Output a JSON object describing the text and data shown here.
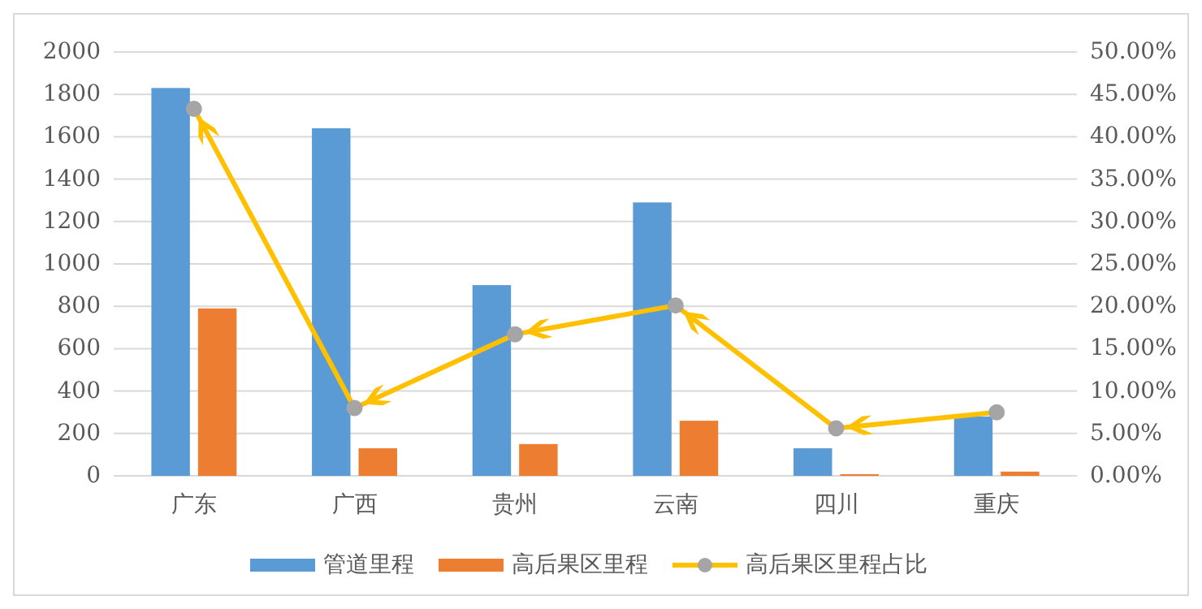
{
  "chart_data": {
    "type": "bar",
    "categories": [
      "广东",
      "广西",
      "贵州",
      "云南",
      "四川",
      "重庆"
    ],
    "series": [
      {
        "name": "管道里程",
        "color": "#5b9bd5",
        "values": [
          1830,
          1640,
          900,
          1290,
          130,
          280
        ]
      },
      {
        "name": "高后果区里程",
        "color": "#ed7d31",
        "values": [
          790,
          130,
          150,
          260,
          8,
          20
        ]
      },
      {
        "name": "高后果区里程占比",
        "type": "line",
        "axis": "y2",
        "color": "#ffc000",
        "marker": "circle",
        "values": [
          43.3,
          8.0,
          16.7,
          20.1,
          5.6,
          7.5
        ]
      }
    ],
    "ylim": [
      0,
      2000
    ],
    "yticks": [
      0,
      200,
      400,
      600,
      800,
      1000,
      1200,
      1400,
      1600,
      1800,
      2000
    ],
    "y2lim": [
      0,
      50
    ],
    "y2ticks": [
      {
        "value": 0,
        "label": "0.00%"
      },
      {
        "value": 5,
        "label": "5.00%"
      },
      {
        "value": 10,
        "label": "10.00%"
      },
      {
        "value": 15,
        "label": "15.00%"
      },
      {
        "value": 20,
        "label": "20.00%"
      },
      {
        "value": 25,
        "label": "25.00%"
      },
      {
        "value": 30,
        "label": "30.00%"
      },
      {
        "value": 35,
        "label": "35.00%"
      },
      {
        "value": 40,
        "label": "40.00%"
      },
      {
        "value": 45,
        "label": "45.00%"
      },
      {
        "value": 50,
        "label": "50.00%"
      }
    ],
    "grid": "y",
    "legend": "bottom"
  }
}
